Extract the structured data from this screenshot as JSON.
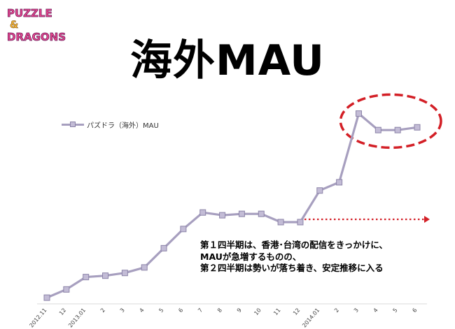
{
  "logo": {
    "line1": "PUZZLE",
    "line2": "&",
    "line3": "DRAGONS"
  },
  "title": "海外MAU",
  "annotation": [
    "第１四半期は、香港･台湾の配信をきっかけに、",
    "MAUが急増するものの、",
    "第２四半期は勢いが落ち着き、安定推移に入る"
  ],
  "colors": {
    "line": "#a79fbf",
    "marker_fill": "#c3bcd6",
    "marker_stroke": "#8c84a8",
    "highlight": "#d31f26"
  },
  "chart_data": {
    "type": "line",
    "categories": [
      "2012.11",
      "12",
      "2013.01",
      "2",
      "3",
      "4",
      "5",
      "6",
      "7",
      "8",
      "9",
      "10",
      "11",
      "12",
      "2014.01",
      "2",
      "3",
      "4",
      "5",
      "6"
    ],
    "series": [
      {
        "name": "パズドラ（海外）MAU",
        "values": [
          2,
          5,
          9.5,
          10,
          11,
          13,
          20,
          27,
          33,
          32,
          32.5,
          32.5,
          29.5,
          29.5,
          41,
          44,
          69,
          63,
          63,
          64
        ]
      }
    ],
    "ylim": [
      0,
      75
    ],
    "grid": false,
    "legend": "top-left",
    "annotations": [
      "highlight-oval-around-last-four-points",
      "dotted-arrow-trend-from-2013.12"
    ]
  }
}
